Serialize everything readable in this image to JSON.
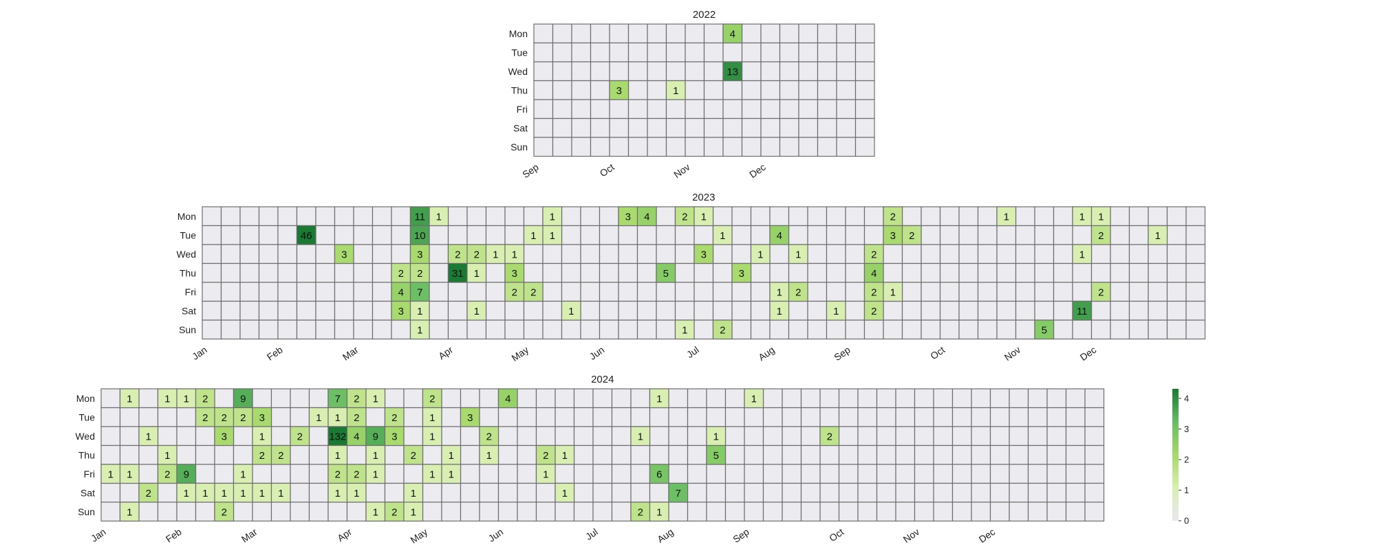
{
  "chart_data": {
    "type": "heatmap",
    "weekdays": [
      "Mon",
      "Tue",
      "Wed",
      "Thu",
      "Fri",
      "Sat",
      "Sun"
    ],
    "colorbar": {
      "ticks": [
        "0",
        "1",
        "2",
        "3",
        "4"
      ],
      "scale": "log-like (log1p)",
      "colors": [
        "#e8e8ee",
        "#d9efb0",
        "#a6d96a",
        "#66bd63",
        "#1a7a33"
      ]
    },
    "panels": [
      {
        "title": "2022",
        "weeks": 18,
        "months": [
          {
            "label": "Sep",
            "week": 0
          },
          {
            "label": "Oct",
            "week": 4
          },
          {
            "label": "Nov",
            "week": 8
          },
          {
            "label": "Dec",
            "week": 12
          }
        ],
        "cells": [
          {
            "week": 10,
            "day": 0,
            "value": 4
          },
          {
            "week": 10,
            "day": 2,
            "value": 13
          },
          {
            "week": 4,
            "day": 3,
            "value": 3
          },
          {
            "week": 7,
            "day": 3,
            "value": 1
          }
        ]
      },
      {
        "title": "2023",
        "weeks": 53,
        "months": [
          {
            "label": "Jan",
            "week": 0
          },
          {
            "label": "Feb",
            "week": 4
          },
          {
            "label": "Mar",
            "week": 8
          },
          {
            "label": "Apr",
            "week": 13
          },
          {
            "label": "May",
            "week": 17
          },
          {
            "label": "Jun",
            "week": 21
          },
          {
            "label": "Jul",
            "week": 26
          },
          {
            "label": "Aug",
            "week": 30
          },
          {
            "label": "Sep",
            "week": 34
          },
          {
            "label": "Oct",
            "week": 39
          },
          {
            "label": "Nov",
            "week": 43
          },
          {
            "label": "Dec",
            "week": 47
          }
        ],
        "cells": [
          {
            "week": 11,
            "day": 0,
            "value": 11
          },
          {
            "week": 12,
            "day": 0,
            "value": 1
          },
          {
            "week": 18,
            "day": 0,
            "value": 1
          },
          {
            "week": 22,
            "day": 0,
            "value": 3
          },
          {
            "week": 23,
            "day": 0,
            "value": 4
          },
          {
            "week": 25,
            "day": 0,
            "value": 2
          },
          {
            "week": 26,
            "day": 0,
            "value": 1
          },
          {
            "week": 36,
            "day": 0,
            "value": 2
          },
          {
            "week": 42,
            "day": 0,
            "value": 1
          },
          {
            "week": 46,
            "day": 0,
            "value": 1
          },
          {
            "week": 47,
            "day": 0,
            "value": 1
          },
          {
            "week": 5,
            "day": 1,
            "value": 46
          },
          {
            "week": 11,
            "day": 1,
            "value": 10
          },
          {
            "week": 17,
            "day": 1,
            "value": 1
          },
          {
            "week": 18,
            "day": 1,
            "value": 1
          },
          {
            "week": 27,
            "day": 1,
            "value": 1
          },
          {
            "week": 30,
            "day": 1,
            "value": 4
          },
          {
            "week": 36,
            "day": 1,
            "value": 3
          },
          {
            "week": 37,
            "day": 1,
            "value": 2
          },
          {
            "week": 47,
            "day": 1,
            "value": 2
          },
          {
            "week": 50,
            "day": 1,
            "value": 1
          },
          {
            "week": 7,
            "day": 2,
            "value": 3
          },
          {
            "week": 11,
            "day": 2,
            "value": 3
          },
          {
            "week": 13,
            "day": 2,
            "value": 2
          },
          {
            "week": 14,
            "day": 2,
            "value": 2
          },
          {
            "week": 15,
            "day": 2,
            "value": 1
          },
          {
            "week": 16,
            "day": 2,
            "value": 1
          },
          {
            "week": 26,
            "day": 2,
            "value": 3
          },
          {
            "week": 29,
            "day": 2,
            "value": 1
          },
          {
            "week": 31,
            "day": 2,
            "value": 1
          },
          {
            "week": 35,
            "day": 2,
            "value": 2
          },
          {
            "week": 46,
            "day": 2,
            "value": 1
          },
          {
            "week": 10,
            "day": 3,
            "value": 2
          },
          {
            "week": 11,
            "day": 3,
            "value": 2
          },
          {
            "week": 13,
            "day": 3,
            "value": 31
          },
          {
            "week": 14,
            "day": 3,
            "value": 1
          },
          {
            "week": 16,
            "day": 3,
            "value": 3
          },
          {
            "week": 24,
            "day": 3,
            "value": 5
          },
          {
            "week": 28,
            "day": 3,
            "value": 3
          },
          {
            "week": 35,
            "day": 3,
            "value": 4
          },
          {
            "week": 10,
            "day": 4,
            "value": 4
          },
          {
            "week": 11,
            "day": 4,
            "value": 7
          },
          {
            "week": 16,
            "day": 4,
            "value": 2
          },
          {
            "week": 17,
            "day": 4,
            "value": 2
          },
          {
            "week": 30,
            "day": 4,
            "value": 1
          },
          {
            "week": 31,
            "day": 4,
            "value": 2
          },
          {
            "week": 35,
            "day": 4,
            "value": 2
          },
          {
            "week": 36,
            "day": 4,
            "value": 1
          },
          {
            "week": 47,
            "day": 4,
            "value": 2
          },
          {
            "week": 10,
            "day": 5,
            "value": 3
          },
          {
            "week": 11,
            "day": 5,
            "value": 1
          },
          {
            "week": 14,
            "day": 5,
            "value": 1
          },
          {
            "week": 19,
            "day": 5,
            "value": 1
          },
          {
            "week": 30,
            "day": 5,
            "value": 1
          },
          {
            "week": 33,
            "day": 5,
            "value": 1
          },
          {
            "week": 35,
            "day": 5,
            "value": 2
          },
          {
            "week": 46,
            "day": 5,
            "value": 11
          },
          {
            "week": 11,
            "day": 6,
            "value": 1
          },
          {
            "week": 25,
            "day": 6,
            "value": 1
          },
          {
            "week": 27,
            "day": 6,
            "value": 2
          },
          {
            "week": 44,
            "day": 6,
            "value": 5
          }
        ]
      },
      {
        "title": "2024",
        "weeks": 53,
        "months": [
          {
            "label": "Jan",
            "week": 0
          },
          {
            "label": "Feb",
            "week": 4
          },
          {
            "label": "Mar",
            "week": 8
          },
          {
            "label": "Apr",
            "week": 13
          },
          {
            "label": "May",
            "week": 17
          },
          {
            "label": "Jun",
            "week": 21
          },
          {
            "label": "Jul",
            "week": 26
          },
          {
            "label": "Aug",
            "week": 30
          },
          {
            "label": "Sep",
            "week": 34
          },
          {
            "label": "Oct",
            "week": 39
          },
          {
            "label": "Nov",
            "week": 43
          },
          {
            "label": "Dec",
            "week": 47
          }
        ],
        "cells": [
          {
            "week": 1,
            "day": 0,
            "value": 1
          },
          {
            "week": 3,
            "day": 0,
            "value": 1
          },
          {
            "week": 4,
            "day": 0,
            "value": 1
          },
          {
            "week": 5,
            "day": 0,
            "value": 2
          },
          {
            "week": 7,
            "day": 0,
            "value": 9
          },
          {
            "week": 12,
            "day": 0,
            "value": 7
          },
          {
            "week": 13,
            "day": 0,
            "value": 2
          },
          {
            "week": 14,
            "day": 0,
            "value": 1
          },
          {
            "week": 17,
            "day": 0,
            "value": 2
          },
          {
            "week": 21,
            "day": 0,
            "value": 4
          },
          {
            "week": 29,
            "day": 0,
            "value": 1
          },
          {
            "week": 34,
            "day": 0,
            "value": 1
          },
          {
            "week": 5,
            "day": 1,
            "value": 2
          },
          {
            "week": 6,
            "day": 1,
            "value": 2
          },
          {
            "week": 7,
            "day": 1,
            "value": 2
          },
          {
            "week": 8,
            "day": 1,
            "value": 3
          },
          {
            "week": 11,
            "day": 1,
            "value": 1
          },
          {
            "week": 12,
            "day": 1,
            "value": 1
          },
          {
            "week": 13,
            "day": 1,
            "value": 2
          },
          {
            "week": 15,
            "day": 1,
            "value": 2
          },
          {
            "week": 17,
            "day": 1,
            "value": 1
          },
          {
            "week": 19,
            "day": 1,
            "value": 3
          },
          {
            "week": 2,
            "day": 2,
            "value": 1
          },
          {
            "week": 6,
            "day": 2,
            "value": 3
          },
          {
            "week": 8,
            "day": 2,
            "value": 1
          },
          {
            "week": 10,
            "day": 2,
            "value": 2
          },
          {
            "week": 12,
            "day": 2,
            "value": 132
          },
          {
            "week": 13,
            "day": 2,
            "value": 4
          },
          {
            "week": 14,
            "day": 2,
            "value": 9
          },
          {
            "week": 15,
            "day": 2,
            "value": 3
          },
          {
            "week": 17,
            "day": 2,
            "value": 1
          },
          {
            "week": 20,
            "day": 2,
            "value": 2
          },
          {
            "week": 28,
            "day": 2,
            "value": 1
          },
          {
            "week": 32,
            "day": 2,
            "value": 1
          },
          {
            "week": 38,
            "day": 2,
            "value": 2
          },
          {
            "week": 3,
            "day": 3,
            "value": 1
          },
          {
            "week": 8,
            "day": 3,
            "value": 2
          },
          {
            "week": 9,
            "day": 3,
            "value": 2
          },
          {
            "week": 12,
            "day": 3,
            "value": 1
          },
          {
            "week": 14,
            "day": 3,
            "value": 1
          },
          {
            "week": 16,
            "day": 3,
            "value": 2
          },
          {
            "week": 18,
            "day": 3,
            "value": 1
          },
          {
            "week": 20,
            "day": 3,
            "value": 1
          },
          {
            "week": 23,
            "day": 3,
            "value": 2
          },
          {
            "week": 24,
            "day": 3,
            "value": 1
          },
          {
            "week": 32,
            "day": 3,
            "value": 5
          },
          {
            "week": 0,
            "day": 4,
            "value": 1
          },
          {
            "week": 1,
            "day": 4,
            "value": 1
          },
          {
            "week": 3,
            "day": 4,
            "value": 2
          },
          {
            "week": 4,
            "day": 4,
            "value": 9
          },
          {
            "week": 7,
            "day": 4,
            "value": 1
          },
          {
            "week": 12,
            "day": 4,
            "value": 2
          },
          {
            "week": 13,
            "day": 4,
            "value": 2
          },
          {
            "week": 14,
            "day": 4,
            "value": 1
          },
          {
            "week": 17,
            "day": 4,
            "value": 1
          },
          {
            "week": 18,
            "day": 4,
            "value": 1
          },
          {
            "week": 23,
            "day": 4,
            "value": 1
          },
          {
            "week": 29,
            "day": 4,
            "value": 6
          },
          {
            "week": 2,
            "day": 5,
            "value": 2
          },
          {
            "week": 4,
            "day": 5,
            "value": 1
          },
          {
            "week": 5,
            "day": 5,
            "value": 1
          },
          {
            "week": 6,
            "day": 5,
            "value": 1
          },
          {
            "week": 7,
            "day": 5,
            "value": 1
          },
          {
            "week": 8,
            "day": 5,
            "value": 1
          },
          {
            "week": 9,
            "day": 5,
            "value": 1
          },
          {
            "week": 12,
            "day": 5,
            "value": 1
          },
          {
            "week": 13,
            "day": 5,
            "value": 1
          },
          {
            "week": 16,
            "day": 5,
            "value": 1
          },
          {
            "week": 24,
            "day": 5,
            "value": 1
          },
          {
            "week": 30,
            "day": 5,
            "value": 7
          },
          {
            "week": 1,
            "day": 6,
            "value": 1
          },
          {
            "week": 6,
            "day": 6,
            "value": 2
          },
          {
            "week": 14,
            "day": 6,
            "value": 1
          },
          {
            "week": 15,
            "day": 6,
            "value": 2
          },
          {
            "week": 16,
            "day": 6,
            "value": 1
          },
          {
            "week": 28,
            "day": 6,
            "value": 2
          },
          {
            "week": 29,
            "day": 6,
            "value": 1
          }
        ]
      }
    ]
  }
}
